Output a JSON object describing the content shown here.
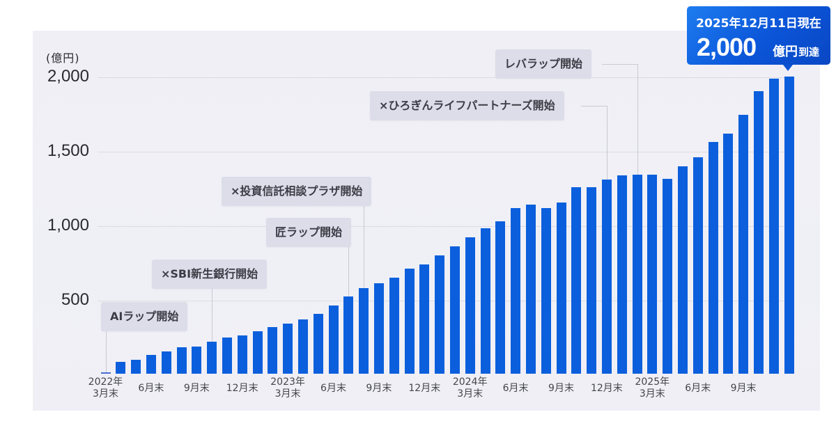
{
  "chart_data": {
    "type": "bar",
    "title": "",
    "ylabel": "(億円)",
    "xlabel": "",
    "ylim": [
      0,
      2000
    ],
    "yticks": [
      "500",
      "1,000",
      "1,500",
      "2,000"
    ],
    "grid": true,
    "bar_color": "#0b5fdc",
    "categories": [
      "2022-03",
      "2022-04",
      "2022-05",
      "2022-06",
      "2022-07",
      "2022-08",
      "2022-09",
      "2022-10",
      "2022-11",
      "2022-12",
      "2023-01",
      "2023-02",
      "2023-03",
      "2023-04",
      "2023-05",
      "2023-06",
      "2023-07",
      "2023-08",
      "2023-09",
      "2023-10",
      "2023-11",
      "2023-12",
      "2024-01",
      "2024-02",
      "2024-03",
      "2024-04",
      "2024-05",
      "2024-06",
      "2024-07",
      "2024-08",
      "2024-09",
      "2024-10",
      "2024-11",
      "2024-12",
      "2025-01",
      "2025-02",
      "2025-03",
      "2025-04",
      "2025-05",
      "2025-06",
      "2025-07",
      "2025-08",
      "2025-09",
      "2025-10",
      "2025-11",
      "2025-12"
    ],
    "values": [
      5,
      80,
      95,
      125,
      150,
      178,
      182,
      216,
      242,
      258,
      288,
      312,
      336,
      364,
      405,
      458,
      519,
      578,
      611,
      645,
      709,
      738,
      796,
      858,
      917,
      980,
      1027,
      1114,
      1140,
      1118,
      1154,
      1257,
      1257,
      1308,
      1335,
      1340,
      1340,
      1313,
      1396,
      1457,
      1561,
      1618,
      1744,
      1905,
      1986,
      2000
    ],
    "x_tick_labels": [
      {
        "index": 0,
        "line1": "2022年",
        "line2": "3月末"
      },
      {
        "index": 3,
        "line1": "6月末",
        "line2": ""
      },
      {
        "index": 6,
        "line1": "9月末",
        "line2": ""
      },
      {
        "index": 9,
        "line1": "12月末",
        "line2": ""
      },
      {
        "index": 12,
        "line1": "2023年",
        "line2": "3月末"
      },
      {
        "index": 15,
        "line1": "6月末",
        "line2": ""
      },
      {
        "index": 18,
        "line1": "9月末",
        "line2": ""
      },
      {
        "index": 21,
        "line1": "12月末",
        "line2": ""
      },
      {
        "index": 24,
        "line1": "2024年",
        "line2": "3月末"
      },
      {
        "index": 27,
        "line1": "6月末",
        "line2": ""
      },
      {
        "index": 30,
        "line1": "9月末",
        "line2": ""
      },
      {
        "index": 33,
        "line1": "12月末",
        "line2": ""
      },
      {
        "index": 36,
        "line1": "2025年",
        "line2": "3月末"
      },
      {
        "index": 39,
        "line1": "6月末",
        "line2": ""
      },
      {
        "index": 42,
        "line1": "9月末",
        "line2": ""
      }
    ],
    "annotations": [
      {
        "label": "AIラップ開始",
        "bar_index": 0
      },
      {
        "label": "×SBI新生銀行開始",
        "bar_index": 7
      },
      {
        "label": "匠ラップ開始",
        "bar_index": 16
      },
      {
        "label": "×投資信託相談プラザ開始",
        "bar_index": 17
      },
      {
        "label": "×ひろぎんライフパートナーズ開始",
        "bar_index": 33
      },
      {
        "label": "レバラップ開始",
        "bar_index": 35
      }
    ],
    "callout": {
      "date": "2025年12月11日現在",
      "value": "2,000",
      "unit": "億円",
      "suffix": "到達",
      "bar_index": 45
    }
  }
}
